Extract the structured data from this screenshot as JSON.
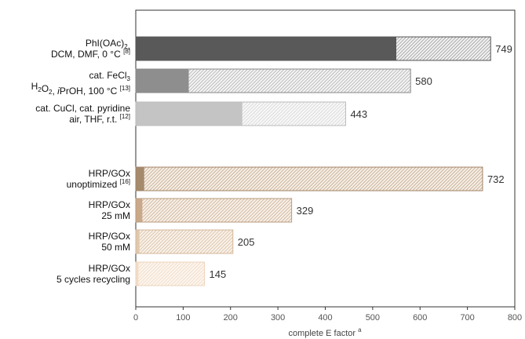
{
  "chart_data": {
    "type": "bar",
    "orientation": "horizontal",
    "xlabel": "complete E factor",
    "xlabel_superscript": "a",
    "xlim": [
      0,
      800
    ],
    "x_ticks": [
      0,
      100,
      200,
      300,
      400,
      500,
      600,
      700,
      800
    ],
    "grid": false,
    "categories": [
      {
        "lines": [
          [
            {
              "t": "PhI(OAc)"
            },
            {
              "t": "2",
              "sub": true
            },
            {
              "t": ","
            }
          ],
          [
            {
              "t": "DCM, DMF, 0 °C "
            },
            {
              "t": "[8]",
              "sup": true
            }
          ]
        ],
        "total": 749,
        "solid_part": 550,
        "solid_color": "#595959",
        "hatch_color": "#8c8c8c",
        "hatch_bg": "#f2f2f2",
        "border_color": "#555555"
      },
      {
        "lines": [
          [
            {
              "t": "cat. FeCl"
            },
            {
              "t": "3",
              "sub": true
            }
          ],
          [
            {
              "t": "H"
            },
            {
              "t": "2",
              "sub": true
            },
            {
              "t": "O"
            },
            {
              "t": "2",
              "sub": true
            },
            {
              "t": ", "
            },
            {
              "t": "i",
              "italic": true
            },
            {
              "t": "PrOH, 100 °C "
            },
            {
              "t": "[13]",
              "sup": true
            }
          ]
        ],
        "total": 580,
        "solid_part": 112,
        "solid_color": "#8e8e8e",
        "hatch_color": "#a6a6a6",
        "hatch_bg": "#f4f4f4",
        "border_color": "#888888"
      },
      {
        "lines": [
          [
            {
              "t": "cat. CuCl, cat. pyridine"
            }
          ],
          [
            {
              "t": "air, THF, r.t. "
            },
            {
              "t": "[12]",
              "sup": true
            }
          ]
        ],
        "total": 443,
        "solid_part": 225,
        "solid_color": "#c4c4c4",
        "hatch_color": "#cfcfcf",
        "hatch_bg": "#f8f8f8",
        "border_color": "#bbbbbb"
      },
      {
        "lines": [
          [
            {
              "t": "HRP/GOx"
            }
          ],
          [
            {
              "t": "unoptimized "
            },
            {
              "t": "[16]",
              "sup": true
            }
          ]
        ],
        "total": 732,
        "solid_part": 18,
        "solid_color": "#a68a6c",
        "hatch_color": "#b89b7d",
        "hatch_bg": "#f6efe6",
        "border_color": "#a08366"
      },
      {
        "lines": [
          [
            {
              "t": "HRP/GOx"
            }
          ],
          [
            {
              "t": "25 mM"
            }
          ]
        ],
        "total": 329,
        "solid_part": 14,
        "solid_color": "#caa98a",
        "hatch_color": "#c4a587",
        "hatch_bg": "#f7f0e8",
        "border_color": "#b99a7c"
      },
      {
        "lines": [
          [
            {
              "t": "HRP/GOx"
            }
          ],
          [
            {
              "t": "50 mM"
            }
          ]
        ],
        "total": 205,
        "solid_part": 8,
        "solid_color": "#e1c7ac",
        "hatch_color": "#d2b596",
        "hatch_bg": "#f9f2ea",
        "border_color": "#d3b798"
      },
      {
        "lines": [
          [
            {
              "t": "HRP/GOx"
            }
          ],
          [
            {
              "t": "5 cycles recycling"
            }
          ]
        ],
        "total": 145,
        "solid_part": 6,
        "solid_color": "#f2dcc6",
        "hatch_color": "#ecd3bb",
        "hatch_bg": "#fdf6ef",
        "border_color": "#ecd4bc"
      }
    ]
  }
}
